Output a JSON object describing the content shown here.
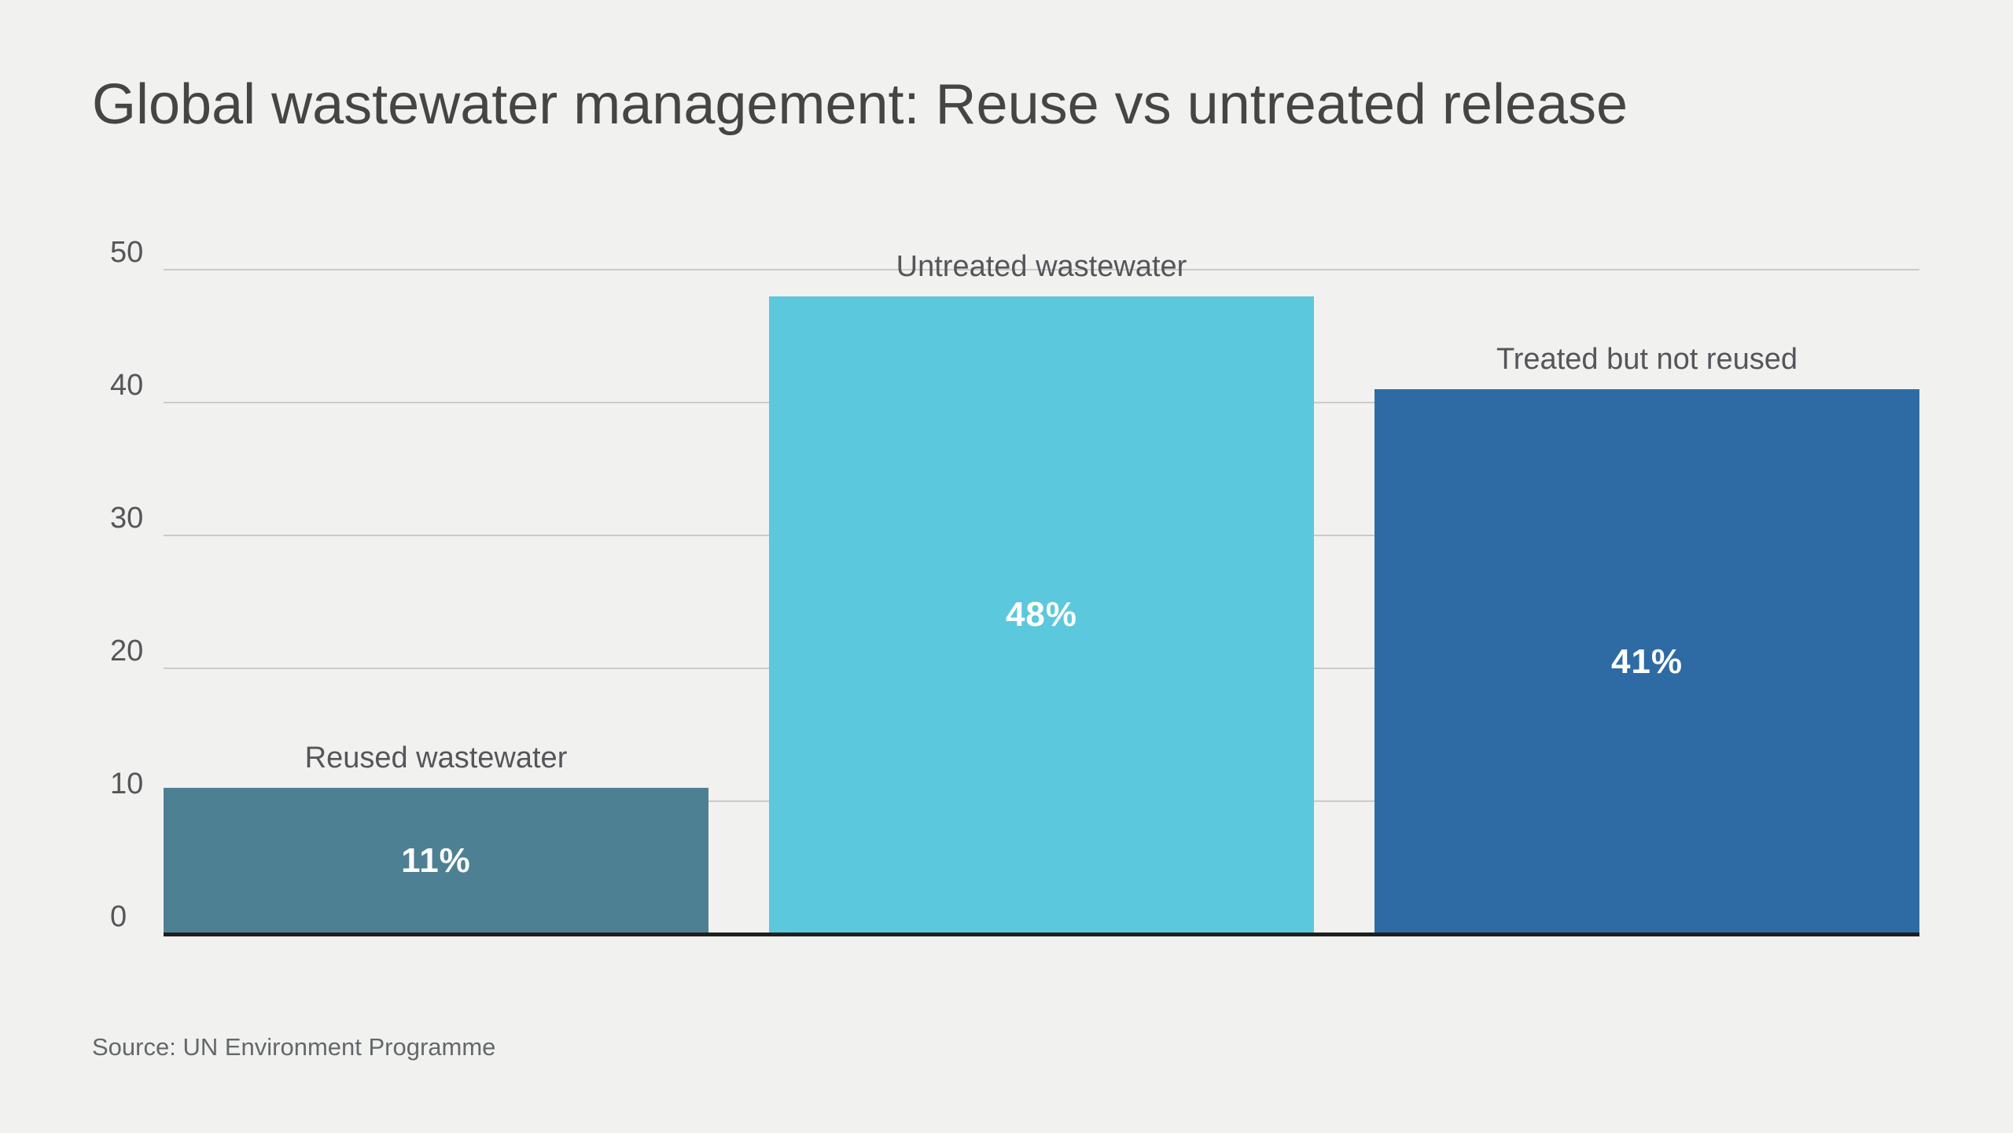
{
  "title": "Global wastewater management: Reuse vs untreated release",
  "source": "Source: UN Environment Programme",
  "colors": {
    "background": "#f1f1ef",
    "grid": "#cbcbc9",
    "axis": "#1f1f1f",
    "title_text": "#454545",
    "label_text": "#55565a",
    "source_text": "#64676b",
    "value_text": "#ffffff",
    "bar_colors": [
      "#4e8093",
      "#5bc8dd",
      "#2e6ba4"
    ]
  },
  "chart_data": {
    "type": "bar",
    "title": "Global wastewater management: Reuse vs untreated release",
    "categories": [
      "Reused wastewater",
      "Untreated wastewater",
      "Treated but not reused"
    ],
    "values": [
      11,
      48,
      41
    ],
    "data_labels": [
      "11%",
      "48%",
      "41%"
    ],
    "unit": "percent",
    "xlabel": "",
    "ylabel": "",
    "ylim": [
      0,
      50
    ],
    "yticks": [
      0,
      10,
      20,
      30,
      40,
      50
    ],
    "grid": "horizontal",
    "legend": "none",
    "source": "Source: UN Environment Programme"
  }
}
